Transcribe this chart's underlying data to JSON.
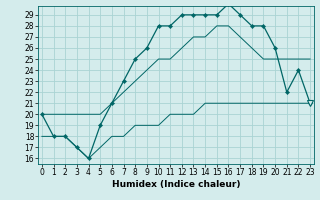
{
  "xlabel": "Humidex (Indice chaleur)",
  "bg_color": "#d4ecec",
  "line_color": "#006666",
  "grid_color": "#aad4d4",
  "x_ticks": [
    0,
    1,
    2,
    3,
    4,
    5,
    6,
    7,
    8,
    9,
    10,
    11,
    12,
    13,
    14,
    15,
    16,
    17,
    18,
    19,
    20,
    21,
    22,
    23
  ],
  "y_ticks": [
    16,
    17,
    18,
    19,
    20,
    21,
    22,
    23,
    24,
    25,
    26,
    27,
    28,
    29
  ],
  "xlim": [
    -0.3,
    23.3
  ],
  "ylim": [
    15.5,
    29.8
  ],
  "humidex_series": [
    20,
    18,
    18,
    17,
    16,
    19,
    21,
    23,
    25,
    26,
    28,
    28,
    29,
    29,
    29,
    29,
    30,
    29,
    28,
    28,
    26,
    22,
    24,
    21
  ],
  "min_series": [
    18,
    18,
    18,
    17,
    16,
    17,
    18,
    18,
    19,
    19,
    19,
    20,
    20,
    20,
    21,
    21,
    21,
    21,
    21,
    21,
    21,
    21,
    21,
    21
  ],
  "max_series": [
    20,
    20,
    20,
    20,
    20,
    20,
    21,
    22,
    23,
    24,
    25,
    25,
    26,
    27,
    27,
    28,
    28,
    27,
    26,
    25,
    25,
    25,
    25,
    25
  ],
  "tick_fontsize": 5.5,
  "xlabel_fontsize": 6.5,
  "xlabel_fontweight": "bold"
}
